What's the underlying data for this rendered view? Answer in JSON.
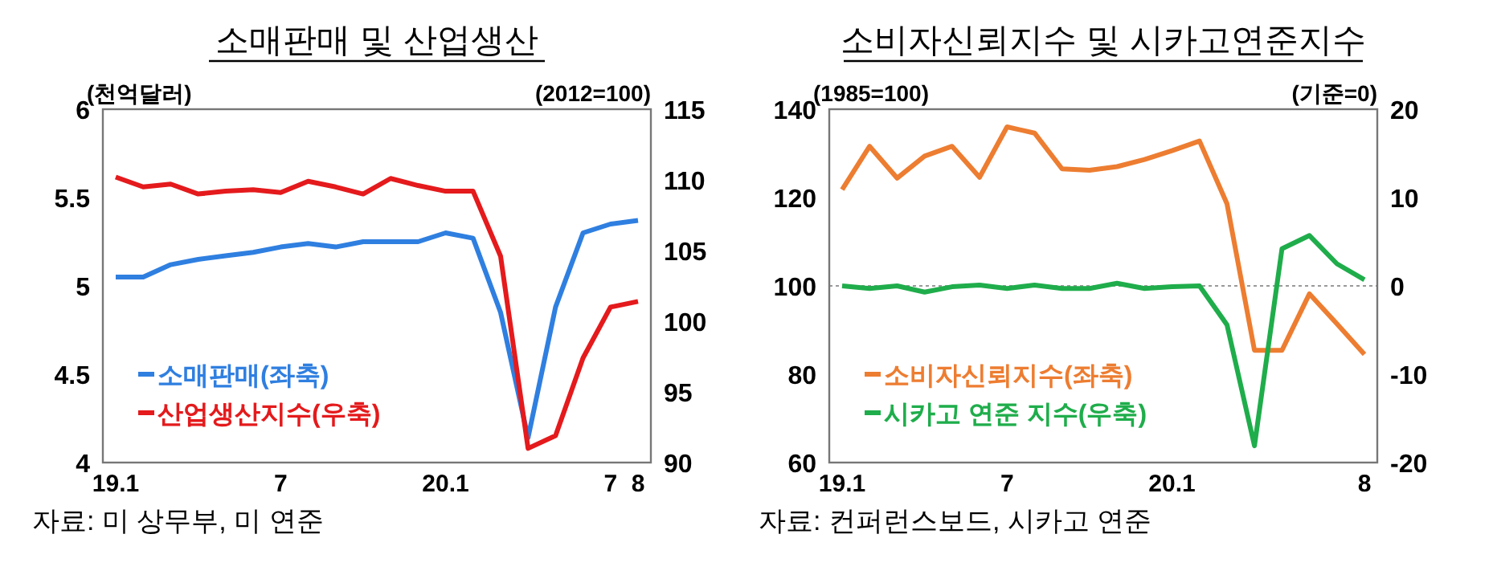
{
  "chart_data": [
    {
      "type": "line",
      "title": "소매판매 및 산업생산",
      "ylabel": "(천억달러)",
      "y2label": "(2012=100)",
      "annotations": [
        "자료: 미 상무부, 미 연준"
      ],
      "categories": [
        "19.1",
        null,
        null,
        null,
        null,
        null,
        "7",
        null,
        null,
        null,
        null,
        null,
        "20.1",
        null,
        null,
        null,
        null,
        null,
        "7",
        "8"
      ],
      "series": [
        {
          "name": "소매판매(좌축)",
          "color": "#2f7fe0",
          "values": [
            5.05,
            5.05,
            5.12,
            5.15,
            5.17,
            5.19,
            5.22,
            5.24,
            5.22,
            5.25,
            5.25,
            5.25,
            5.3,
            5.27,
            4.85,
            4.14,
            4.88,
            5.3,
            5.35,
            5.37
          ]
        },
        {
          "name": "산업생산지수(우축)",
          "color": "#e41a1c",
          "axis": "y2",
          "values": [
            110.2,
            109.5,
            109.7,
            109.0,
            109.2,
            109.3,
            109.1,
            109.9,
            109.5,
            109.0,
            110.1,
            109.6,
            109.2,
            109.2,
            104.6,
            91.0,
            91.9,
            97.4,
            101.0,
            101.4
          ]
        }
      ],
      "ylim": [
        4,
        6
      ],
      "yticks": [
        4,
        4.5,
        5,
        5.5,
        6
      ],
      "y2lim": [
        90,
        115
      ],
      "y2ticks": [
        90,
        95,
        100,
        105,
        110,
        115
      ],
      "legend": "bottom left",
      "grid": false
    },
    {
      "type": "line",
      "title": "소비자신뢰지수 및 시카고연준지수",
      "ylabel": "(1985=100)",
      "y2label": "(기준=0)",
      "annotations": [
        "자료: 컨퍼런스보드, 시카고 연준"
      ],
      "categories": [
        "19.1",
        null,
        null,
        null,
        null,
        null,
        "7",
        null,
        null,
        null,
        null,
        null,
        "20.1",
        null,
        null,
        null,
        null,
        null,
        null,
        "8"
      ],
      "series": [
        {
          "name": "소비자신뢰지수(좌축)",
          "color": "#ed7d31",
          "values": [
            121.8,
            131.6,
            124.4,
            129.4,
            131.6,
            124.6,
            136.0,
            134.6,
            126.5,
            126.2,
            127.0,
            128.6,
            130.6,
            132.8,
            118.6,
            85.4,
            85.4,
            98.2,
            91.4,
            84.5
          ]
        },
        {
          "name": "시카고 연준 지수(우축)",
          "color": "#1fad4b",
          "axis": "y2",
          "values": [
            0,
            -0.3,
            0,
            -0.7,
            -0.1,
            0.1,
            -0.3,
            0.1,
            -0.3,
            -0.3,
            0.3,
            -0.3,
            -0.1,
            0,
            -4.4,
            -18.1,
            4.2,
            5.7,
            2.5,
            0.7
          ]
        }
      ],
      "ylim": [
        60,
        140
      ],
      "yticks": [
        60,
        80,
        100,
        120,
        140
      ],
      "y2lim": [
        -20,
        20
      ],
      "y2ticks": [
        -20,
        -10,
        0,
        10,
        20
      ],
      "ref_lines": [
        {
          "axis": "y2",
          "value": 0,
          "color": "#999999",
          "line_style": "dotted"
        }
      ],
      "legend": "bottom left",
      "grid": false
    }
  ]
}
